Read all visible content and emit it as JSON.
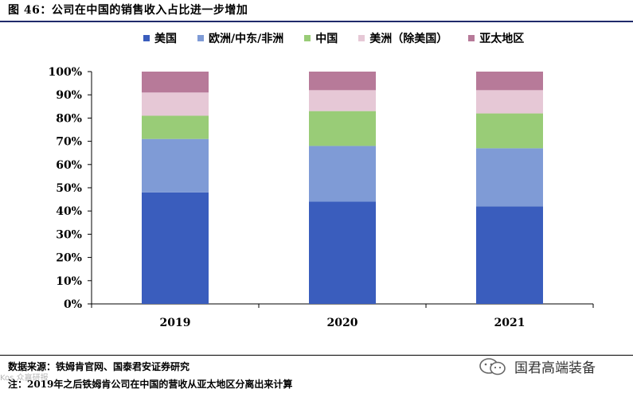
{
  "header": {
    "title": "图 46：公司在中国的销售收入占比进一步增加"
  },
  "legend": [
    {
      "label": "美国",
      "color": "#3a5dbd"
    },
    {
      "label": "欧洲/中东/非洲",
      "color": "#7f9bd6"
    },
    {
      "label": "中国",
      "color": "#99cc77"
    },
    {
      "label": "美洲（除美国）",
      "color": "#e6c8d6"
    },
    {
      "label": "亚太地区",
      "color": "#b77a99"
    }
  ],
  "chart_data": {
    "type": "bar",
    "stacked": true,
    "title": "图 46：公司在中国的销售收入占比进一步增加",
    "categories": [
      "2019",
      "2020",
      "2021"
    ],
    "series": [
      {
        "name": "美国",
        "values": [
          48,
          44,
          42
        ],
        "color": "#3a5dbd"
      },
      {
        "name": "欧洲/中东/非洲",
        "values": [
          23,
          24,
          25
        ],
        "color": "#7f9bd6"
      },
      {
        "name": "中国",
        "values": [
          10,
          15,
          15
        ],
        "color": "#99cc77"
      },
      {
        "name": "美洲（除美国）",
        "values": [
          10,
          9,
          10
        ],
        "color": "#e6c8d6"
      },
      {
        "name": "亚太地区",
        "values": [
          9,
          8,
          8
        ],
        "color": "#b77a99"
      }
    ],
    "yticks": [
      "0%",
      "10%",
      "20%",
      "30%",
      "40%",
      "50%",
      "60%",
      "70%",
      "80%",
      "90%",
      "100%"
    ],
    "ylim": [
      0,
      100
    ],
    "xlabel": "",
    "ylabel": "",
    "grid": false,
    "legend": "top"
  },
  "footer": {
    "source": "数据来源：铁姆肯官网、国泰君安证券研究",
    "note": "注：2019年之后铁姆肯公司在中国的营收从亚太地区分离出来计算"
  },
  "watermark": {
    "text": "国君高端装备",
    "corner": "Kos 众赢研报"
  }
}
